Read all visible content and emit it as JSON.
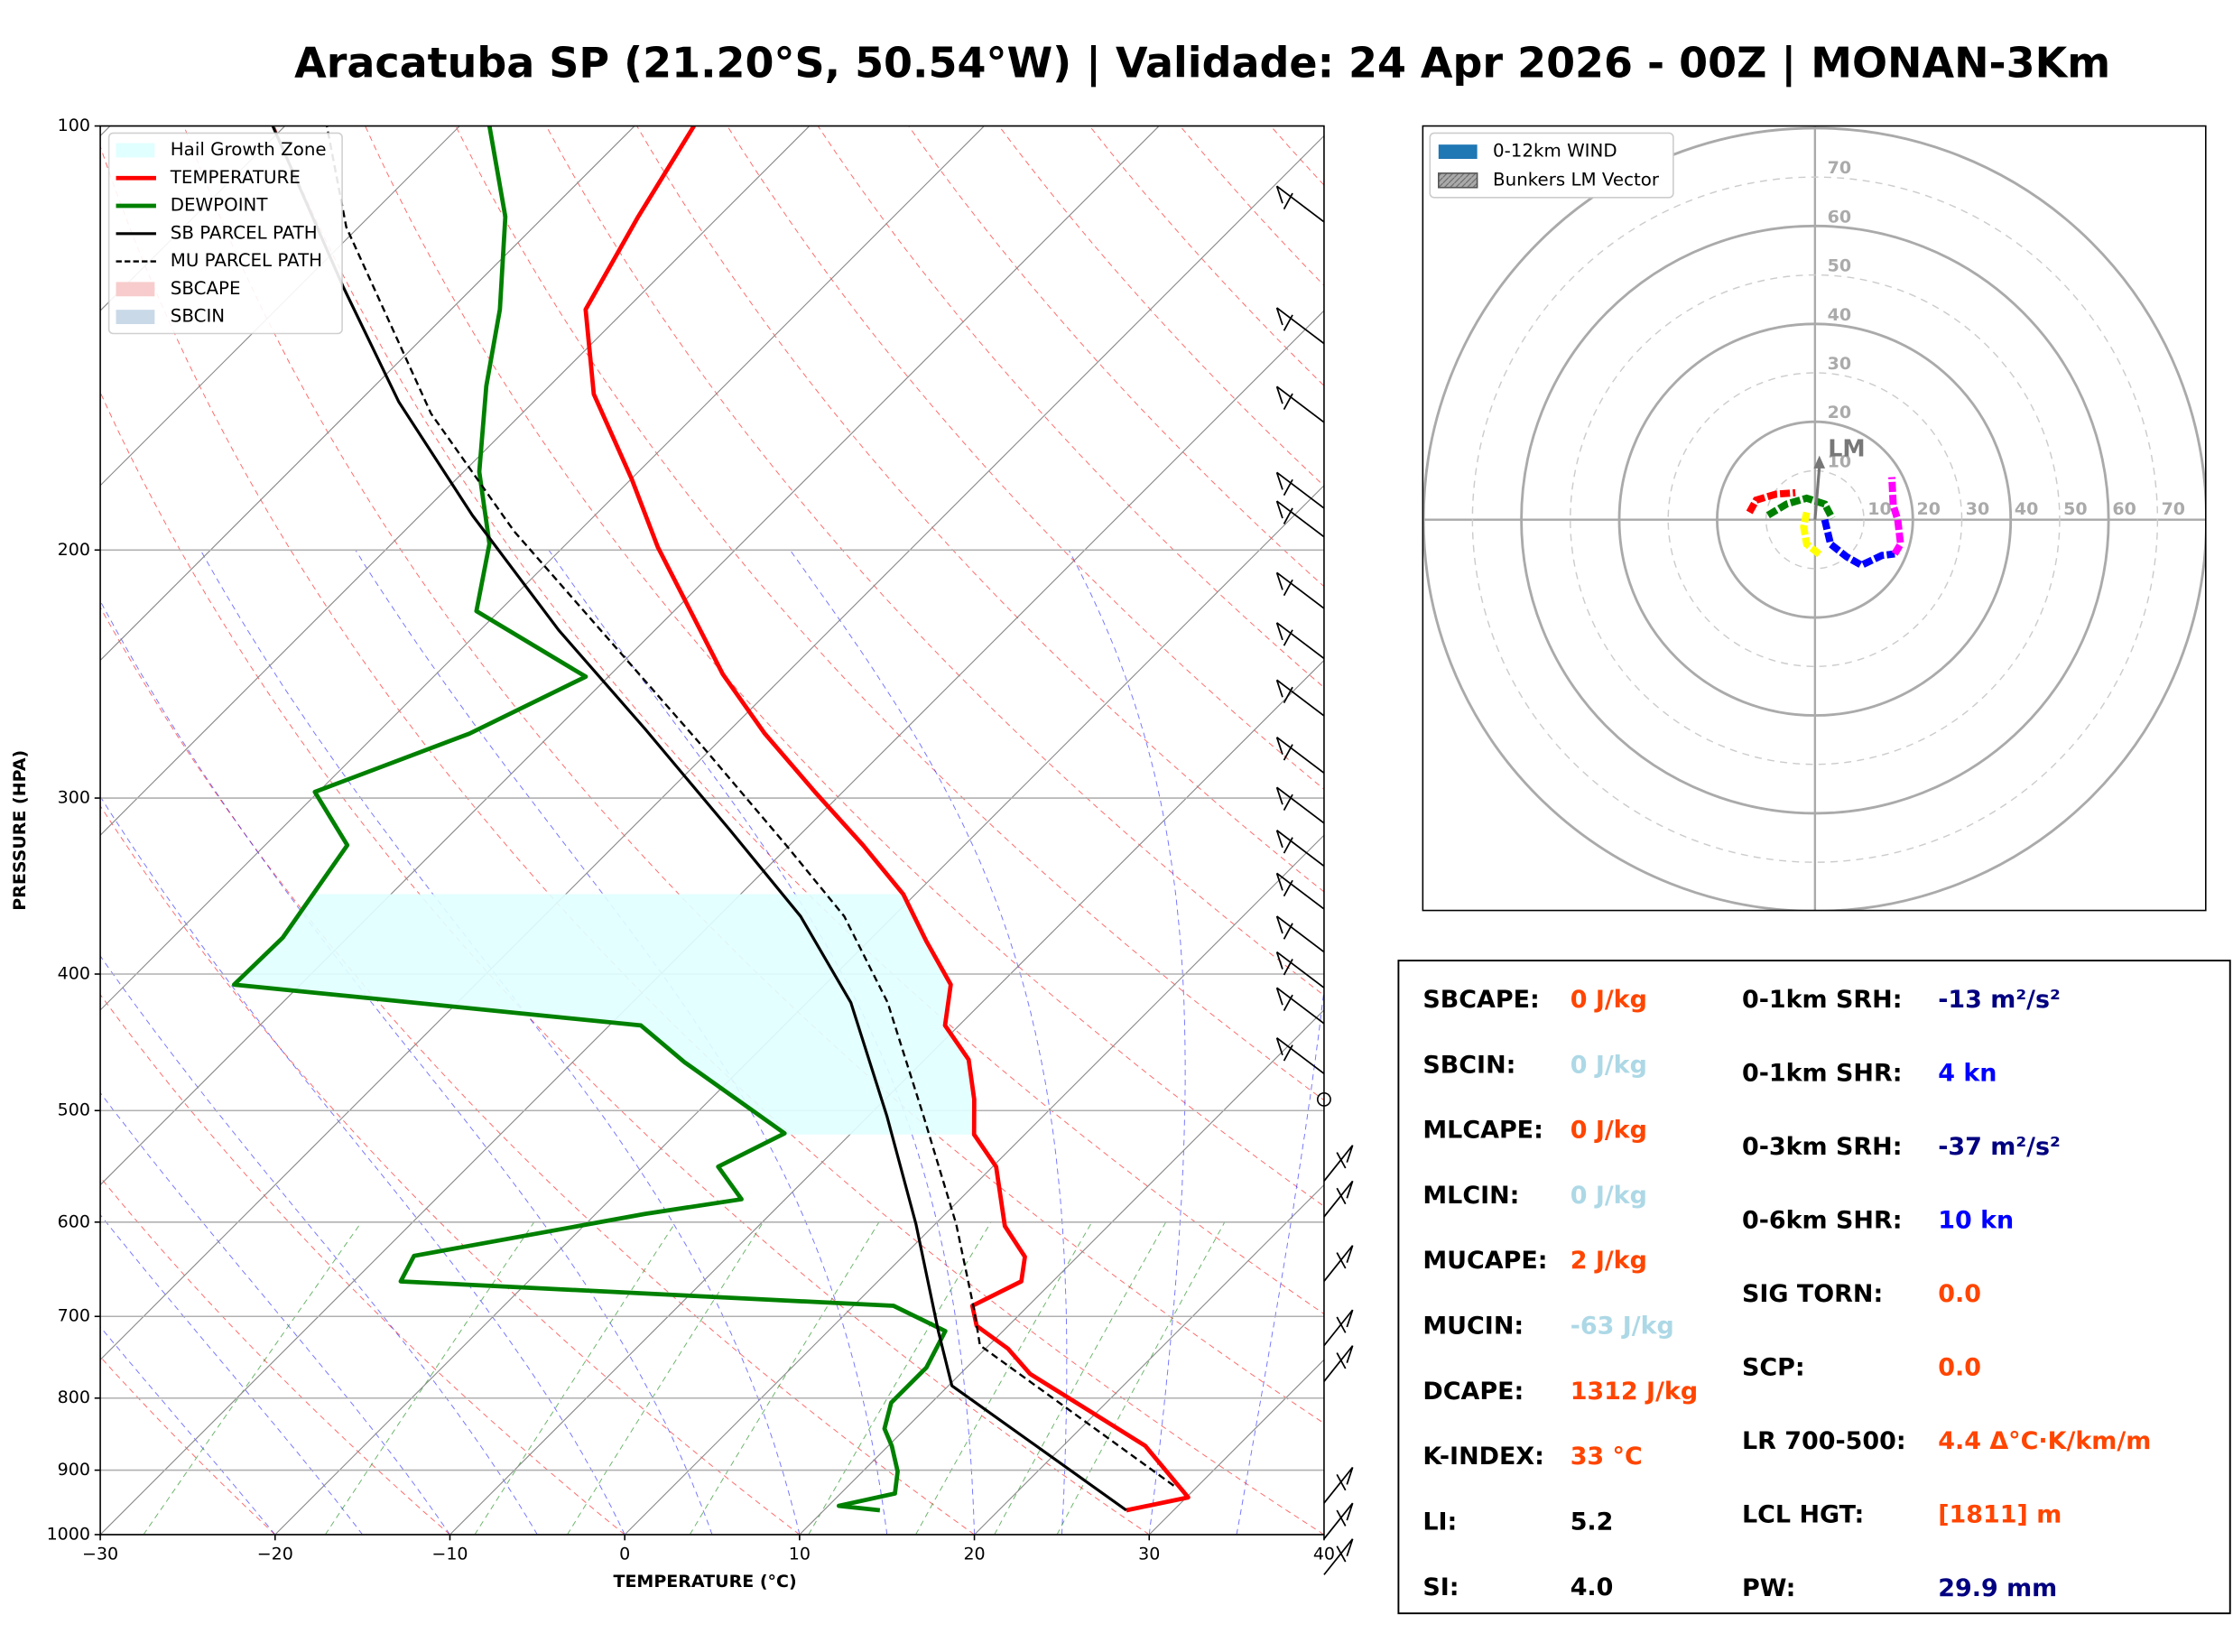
{
  "chart_data": [
    {
      "type": "skewt",
      "title": "Aracatuba SP (21.20°S, 50.54°W) | Validade: 24 Apr 2026 - 00Z | MONAN-3Km",
      "xlabel": "TEMPERATURE (°C)",
      "ylabel": "PRESSURE (HPA)",
      "xlim": [
        -30,
        40
      ],
      "ylim": [
        1000,
        100
      ],
      "yscale": "log",
      "grid": true,
      "xticks": [
        {
          "value": -30,
          "label": "−30"
        },
        {
          "value": -20,
          "label": "−20"
        },
        {
          "value": -10,
          "label": "−10"
        },
        0,
        10,
        20,
        30,
        40
      ],
      "yticks": [
        1000,
        900,
        800,
        700,
        600,
        500,
        400,
        300,
        200,
        100
      ],
      "legend": "upper left",
      "areas": [
        {
          "name": "Hail Growth Zone",
          "color": "#e0ffff",
          "pressure": [
            520,
            351
          ]
        },
        {
          "name": "SBCAPE",
          "color": "#f8cccc"
        },
        {
          "name": "SBCIN",
          "color": "#c9d9e8"
        }
      ],
      "series": [
        {
          "name": "TEMPERATURE",
          "color": "#ff0000",
          "width": 3,
          "dash": false,
          "pressure": [
            961,
            941,
            865,
            816,
            769,
            738,
            711,
            688,
            661,
            635,
            604,
            548,
            520,
            491,
            460,
            435,
            407,
            379,
            351,
            324,
            297,
            270,
            245,
            199,
            178,
            155,
            135,
            116,
            100
          ],
          "values": [
            27.3,
            30.1,
            24.7,
            19.4,
            14.0,
            11.3,
            8.2,
            6.8,
            8.2,
            7.0,
            4.1,
            0.2,
            -2.9,
            -4.9,
            -7.5,
            -10.8,
            -12.8,
            -16.7,
            -20.7,
            -25.8,
            -31.6,
            -37.8,
            -43.6,
            -54.6,
            -60.0,
            -67.0,
            -72.3,
            -74.6,
            -76.6
          ]
        },
        {
          "name": "DEWPOINT",
          "color": "#008000",
          "width": 3,
          "dash": false,
          "pressure": [
            961,
            954,
            935,
            902,
            865,
            841,
            806,
            761,
            717,
            688,
            661,
            634,
            592,
            578,
            548,
            519,
            462,
            435,
            407,
            377,
            324,
            297,
            270,
            246,
            221,
            198,
            176,
            153,
            135,
            116,
            100
          ],
          "values": [
            13.2,
            10.6,
            13.1,
            12.0,
            10.2,
            8.8,
            7.7,
            7.7,
            6.7,
            2.3,
            -27.3,
            -28.0,
            -17.2,
            -12.5,
            -15.7,
            -13.8,
            -23.6,
            -28.2,
            -53.8,
            -53.7,
            -55.3,
            -60.2,
            -54.7,
            -51.3,
            -61.3,
            -64.4,
            -69.1,
            -73.6,
            -77.2,
            -82.2,
            -88.3
          ]
        },
        {
          "name": "SB PARCEL PATH",
          "color": "#000000",
          "width": 2,
          "dash": false,
          "pressure": [
            961,
            784,
            717,
            602,
            505,
            419,
            364,
            316,
            268,
            228,
            189,
            157,
            130,
            100
          ],
          "values": [
            27.3,
            10.2,
            6.3,
            -1.1,
            -8.9,
            -17.5,
            -25.3,
            -34.3,
            -44.9,
            -55.5,
            -67.0,
            -77.7,
            -87.5,
            -100.7
          ]
        },
        {
          "name": "MU PARCEL PATH",
          "color": "#000000",
          "width": 1.5,
          "dash": true,
          "pressure": [
            923,
            734,
            692,
            602,
            505,
            419,
            364,
            324,
            275,
            228,
            194,
            160,
            118,
            100
          ],
          "values": [
            28.6,
            9.5,
            7.1,
            1.2,
            -6.8,
            -15.4,
            -22.8,
            -30.2,
            -40.8,
            -53.1,
            -63.7,
            -75.2,
            -90.7,
            -97.6
          ]
        }
      ]
    },
    {
      "type": "hodograph",
      "rlim": [
        0,
        80
      ],
      "rticks": [
        10,
        20,
        30,
        40,
        50,
        60,
        70
      ],
      "legend": [
        {
          "name": "0-12km WIND",
          "color": "#1f77b4"
        },
        {
          "name": "Bunkers LM Vector",
          "color": "#999999"
        }
      ],
      "bunkers_lm": {
        "label": "LM",
        "u": 0.9,
        "v": 13.1
      },
      "series": [
        {
          "color": "#ff0000",
          "x": [
            -13.4,
            -12.0,
            -8.0,
            -4.0
          ],
          "values": [
            1.5,
            4.0,
            5.2,
            5.5
          ]
        },
        {
          "color": "#008000",
          "x": [
            -9.6,
            -5.8,
            -1.7,
            2.0,
            3.5
          ],
          "values": [
            0.9,
            3.2,
            4.4,
            3.2,
            0.3
          ]
        },
        {
          "color": "#ffff00",
          "x": [
            -1.7,
            -2.3,
            -1.7,
            1.2
          ],
          "values": [
            1.5,
            -1.5,
            -5.0,
            -7.3
          ]
        },
        {
          "color": "#0000ff",
          "x": [
            2.0,
            3.2,
            6.5,
            9.5,
            13.7,
            16.3
          ],
          "values": [
            0,
            -5.0,
            -7.6,
            -9.3,
            -7.3,
            -7.0
          ]
        },
        {
          "color": "#ff00ff",
          "x": [
            16.3,
            17.5,
            16.9,
            16.0,
            15.7
          ],
          "values": [
            -7.0,
            -5.0,
            0,
            2.9,
            8.7
          ]
        }
      ]
    }
  ],
  "indices": {
    "left": [
      {
        "label": "SBCAPE:",
        "value": "0 J/kg",
        "color": "#ff4500"
      },
      {
        "label": "SBCIN:",
        "value": "0 J/kg",
        "color": "#add8e6"
      },
      {
        "label": "MLCAPE:",
        "value": "0 J/kg",
        "color": "#ff4500"
      },
      {
        "label": "MLCIN:",
        "value": "0 J/kg",
        "color": "#add8e6"
      },
      {
        "label": "MUCAPE:",
        "value": "2 J/kg",
        "color": "#ff4500"
      },
      {
        "label": "MUCIN:",
        "value": "-63 J/kg",
        "color": "#add8e6"
      },
      {
        "label": "DCAPE:",
        "value": "1312 J/kg",
        "color": "#ff4500"
      },
      {
        "label": "K-INDEX:",
        "value": "33 °C",
        "color": "#ff4500"
      },
      {
        "label": "LI:",
        "value": "5.2",
        "color": "#000000"
      },
      {
        "label": "SI:",
        "value": "4.0",
        "color": "#000000"
      }
    ],
    "right": [
      {
        "label": "0-1km SRH:",
        "value": "-13 m²/s²",
        "color": "#000080"
      },
      {
        "label": "0-1km SHR:",
        "value": "4 kn",
        "color": "#0000ff"
      },
      {
        "label": "0-3km SRH:",
        "value": "-37 m²/s²",
        "color": "#000080"
      },
      {
        "label": "0-6km SHR:",
        "value": "10 kn",
        "color": "#0000ff"
      },
      {
        "label": "SIG TORN:",
        "value": "0.0",
        "color": "#ff4500"
      },
      {
        "label": "SCP:",
        "value": "0.0",
        "color": "#ff4500"
      },
      {
        "label": "LR 700-500:",
        "value": "4.4 Δ°C·K/km/m",
        "color": "#ff4500"
      },
      {
        "label": "LCL HGT:",
        "value": "[1811] m",
        "color": "#ff4500"
      },
      {
        "label": "PW:",
        "value": "29.9 mm",
        "color": "#000080"
      }
    ]
  }
}
